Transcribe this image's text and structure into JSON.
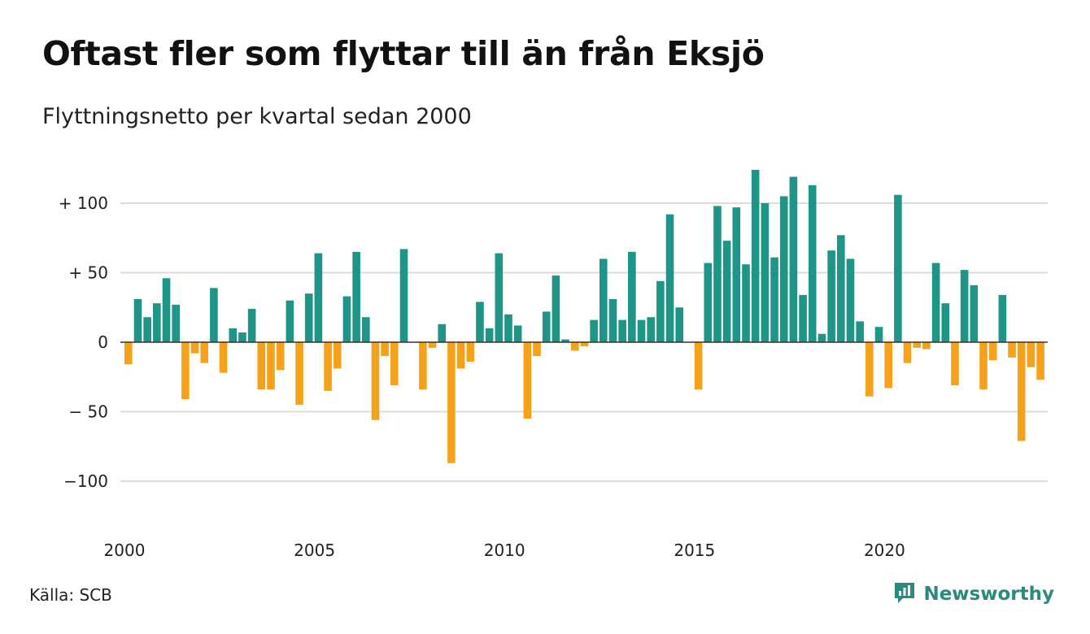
{
  "title": "Oftast fler som flyttar till än från Eksjö",
  "subtitle": "Flyttningsnetto per kvartal sedan 2000",
  "source": "Källa: SCB",
  "brand": {
    "name": "Newsworthy",
    "icon": "bar-chart-logo-icon"
  },
  "colors": {
    "positive": "#1f9587",
    "negative": "#f5a21a",
    "grid": "#dddddd",
    "axis": "#333333",
    "brand": "#2a8a7d"
  },
  "chart_data": {
    "type": "bar",
    "title": "Oftast fler som flyttar till än från Eksjö",
    "subtitle": "Flyttningsnetto per kvartal sedan 2000",
    "ylim": [
      -125,
      125
    ],
    "y_ticks": [
      {
        "value": 100,
        "label": "+ 100"
      },
      {
        "value": 50,
        "label": "+  50"
      },
      {
        "value": 0,
        "label": "0"
      },
      {
        "value": -50,
        "label": "− 50"
      },
      {
        "value": -100,
        "label": "−100"
      }
    ],
    "x_ticks": [
      {
        "label": "2000",
        "quarter_index": 0
      },
      {
        "label": "2005",
        "quarter_index": 20
      },
      {
        "label": "2010",
        "quarter_index": 40
      },
      {
        "label": "2015",
        "quarter_index": 60
      },
      {
        "label": "2020",
        "quarter_index": 80
      }
    ],
    "grid": true,
    "legend": "none",
    "x_start": "2000 Q1",
    "values": [
      -16,
      31,
      18,
      28,
      46,
      27,
      -41,
      -8,
      -15,
      39,
      -22,
      10,
      7,
      24,
      -34,
      -34,
      -20,
      30,
      -45,
      35,
      64,
      -35,
      -19,
      33,
      65,
      18,
      -56,
      -10,
      -31,
      67,
      0,
      -34,
      -4,
      13,
      -87,
      -19,
      -14,
      29,
      10,
      64,
      20,
      12,
      -55,
      -10,
      22,
      48,
      2,
      -6,
      -3,
      16,
      60,
      31,
      16,
      65,
      16,
      18,
      44,
      92,
      25,
      0,
      -34,
      57,
      98,
      73,
      97,
      56,
      124,
      100,
      61,
      105,
      119,
      34,
      113,
      6,
      66,
      77,
      60,
      15,
      -39,
      11,
      -33,
      106,
      -15,
      -4,
      -5,
      57,
      28,
      -31,
      52,
      41,
      -34,
      -13,
      34,
      -11,
      -71,
      -18,
      -27
    ]
  }
}
